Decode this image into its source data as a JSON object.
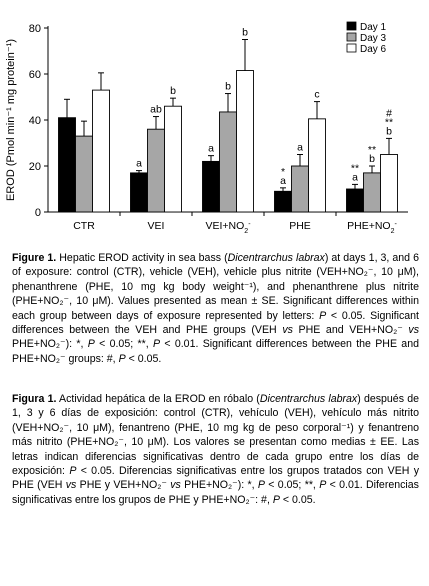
{
  "chart_data": {
    "type": "bar",
    "title": "",
    "ylabel": "EROD (Pmol min⁻¹ mg protein⁻¹)",
    "xlabel": "",
    "ylim": [
      0,
      80
    ],
    "yticks": [
      0,
      20,
      40,
      60,
      80
    ],
    "grid": false,
    "legend_position": "top-right",
    "categories": [
      "CTR",
      "VEI",
      "VEI+NO2-",
      "PHE",
      "PHE+NO2-"
    ],
    "series": [
      {
        "name": "Day 1",
        "color": "#000000",
        "values": [
          41,
          17,
          22,
          9,
          10
        ],
        "errors": [
          8,
          1,
          2.5,
          1.5,
          2
        ]
      },
      {
        "name": "Day 3",
        "color": "#a6a6a6",
        "values": [
          33,
          36,
          43.5,
          20,
          17
        ],
        "errors": [
          6.5,
          5.5,
          8,
          5,
          3
        ]
      },
      {
        "name": "Day 6",
        "color": "#ffffff",
        "values": [
          53,
          46,
          61.5,
          40.5,
          25
        ],
        "errors": [
          7.5,
          3.5,
          13.5,
          7.5,
          7
        ]
      }
    ],
    "annotations": [
      {
        "category": 1,
        "series": 0,
        "lines": [
          "a"
        ]
      },
      {
        "category": 1,
        "series": 1,
        "lines": [
          "ab"
        ]
      },
      {
        "category": 1,
        "series": 2,
        "lines": [
          "b"
        ]
      },
      {
        "category": 2,
        "series": 0,
        "lines": [
          "a"
        ]
      },
      {
        "category": 2,
        "series": 1,
        "lines": [
          "b"
        ]
      },
      {
        "category": 2,
        "series": 2,
        "lines": [
          "b"
        ]
      },
      {
        "category": 3,
        "series": 0,
        "lines": [
          "*",
          "a"
        ]
      },
      {
        "category": 3,
        "series": 1,
        "lines": [
          "a"
        ]
      },
      {
        "category": 3,
        "series": 2,
        "lines": [
          "c"
        ]
      },
      {
        "category": 4,
        "series": 0,
        "lines": [
          "**",
          "a"
        ]
      },
      {
        "category": 4,
        "series": 1,
        "lines": [
          "**",
          "b"
        ]
      },
      {
        "category": 4,
        "series": 2,
        "lines": [
          "#",
          "**",
          "b"
        ]
      }
    ]
  },
  "caption_en": {
    "label": "Figure 1.",
    "t1": " Hepatic EROD activity in sea bass (",
    "species": "Dicentrarchus labrax",
    "t2": ") at days 1, 3, and 6 of exposure: control (CTR), vehicle (VEH), vehicle plus nitrite (VEH+NO₂⁻, 10 μM), phenanthrene (PHE, 10 mg kg body weight⁻¹), and phenanthrene plus nitrite (PHE+NO₂⁻, 10 μM). Values presented as mean ± SE. Significant differences within each group between days of exposure represented by letters: ",
    "p1": "P",
    "t3": " < 0.05. Significant differences between the VEH and PHE groups (VEH ",
    "vs1": "vs",
    "t4": " PHE and VEH+NO₂⁻ ",
    "vs2": "vs",
    "t5": " PHE+NO₂⁻): *, ",
    "p2": "P",
    "t6": " < 0.05; **, ",
    "p3": "P",
    "t7": " < 0.01. Significant differences between the PHE and PHE+NO₂⁻ groups: #, ",
    "p4": "P",
    "t8": " < 0.05."
  },
  "caption_es": {
    "label": "Figura 1.",
    "t1": " Actividad hepática de la EROD en róbalo (",
    "species": "Dicentrarchus labrax",
    "t2": ") después de 1, 3 y 6 días de exposición: control (CTR), vehículo (VEH), vehículo más nitrito (VEH+NO₂⁻, 10 μM), fenantreno (PHE, 10 mg kg de peso corporal⁻¹) y fenantreno más nitrito (PHE+NO₂⁻, 10 μM). Los valores se presentan como medias ± EE. Las letras indican diferencias significativas dentro de cada grupo entre los días de exposición: ",
    "p1": "P",
    "t3": " < 0.05. Diferencias significativas entre los grupos tratados con VEH y PHE (VEH ",
    "vs1": "vs",
    "t4": " PHE y VEH+NO₂⁻ ",
    "vs2": "vs",
    "t5": " PHE+NO₂⁻): *, ",
    "p2": "P",
    "t6": " < 0.05; **, ",
    "p3": "P",
    "t7": " < 0.01. Diferencias significativas entre los grupos de PHE y PHE+NO₂⁻: #, ",
    "p4": "P",
    "t8": " < 0.05."
  }
}
